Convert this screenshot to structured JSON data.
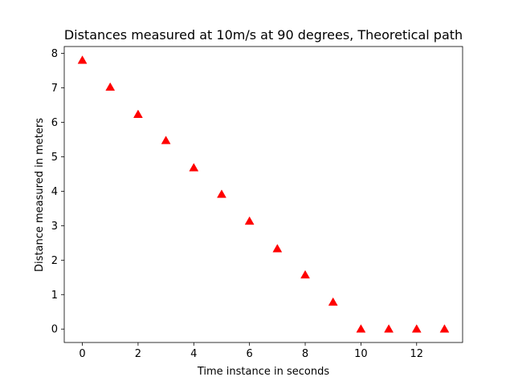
{
  "chart_data": {
    "type": "scatter",
    "title": "Distances measured at 10m/s at 90 degrees, Theoretical path",
    "xlabel": "Time instance in seconds",
    "ylabel": "Distance measured in meters",
    "xlim": [
      -0.65,
      13.65
    ],
    "ylim": [
      -0.39,
      8.2
    ],
    "xticks": [
      0,
      2,
      4,
      6,
      8,
      10,
      12
    ],
    "yticks": [
      0,
      1,
      2,
      3,
      4,
      5,
      6,
      7,
      8
    ],
    "grid": false,
    "marker": "triangle-up",
    "marker_color": "#ff0000",
    "series": [
      {
        "x": [
          0,
          1,
          2,
          3,
          4,
          5,
          6,
          7,
          8,
          9,
          10,
          11,
          12,
          13
        ],
        "values": [
          7.8,
          7.02,
          6.23,
          5.47,
          4.68,
          3.91,
          3.13,
          2.33,
          1.57,
          0.78,
          0,
          0,
          0,
          0
        ]
      }
    ]
  }
}
